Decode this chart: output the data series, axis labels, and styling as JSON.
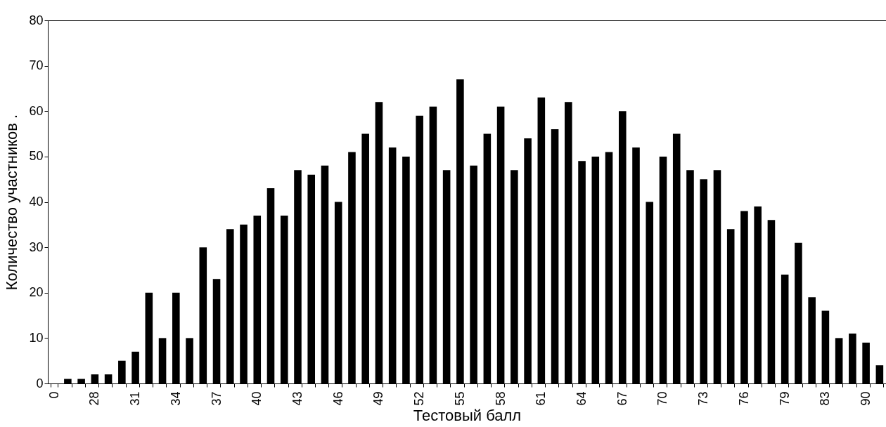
{
  "chart_data": {
    "type": "bar",
    "xlabel": "Тестовый балл",
    "ylabel": "Количество участников .",
    "categories": [
      "0",
      null,
      null,
      "28",
      null,
      null,
      "31",
      null,
      null,
      "34",
      null,
      null,
      "37",
      null,
      null,
      "40",
      null,
      null,
      "43",
      null,
      null,
      "46",
      null,
      null,
      "49",
      null,
      null,
      "52",
      null,
      null,
      "55",
      null,
      null,
      "58",
      null,
      null,
      "61",
      null,
      null,
      "64",
      null,
      null,
      "67",
      null,
      null,
      "70",
      null,
      null,
      "73",
      null,
      null,
      "76",
      null,
      null,
      "79",
      null,
      null,
      "83",
      null,
      null,
      "90",
      null
    ],
    "values": [
      0,
      1,
      1,
      2,
      2,
      5,
      7,
      20,
      10,
      20,
      10,
      30,
      23,
      34,
      35,
      37,
      43,
      37,
      47,
      46,
      48,
      40,
      51,
      55,
      62,
      52,
      50,
      59,
      61,
      47,
      67,
      48,
      55,
      61,
      47,
      54,
      63,
      56,
      62,
      49,
      50,
      51,
      60,
      52,
      40,
      50,
      55,
      47,
      45,
      47,
      34,
      38,
      39,
      36,
      24,
      31,
      19,
      16,
      10,
      11,
      9,
      4
    ],
    "color": "#000000",
    "ylim": [
      0,
      80
    ],
    "yticks": [
      0,
      10,
      20,
      30,
      40,
      50,
      60,
      70,
      80
    ],
    "grid": false
  }
}
